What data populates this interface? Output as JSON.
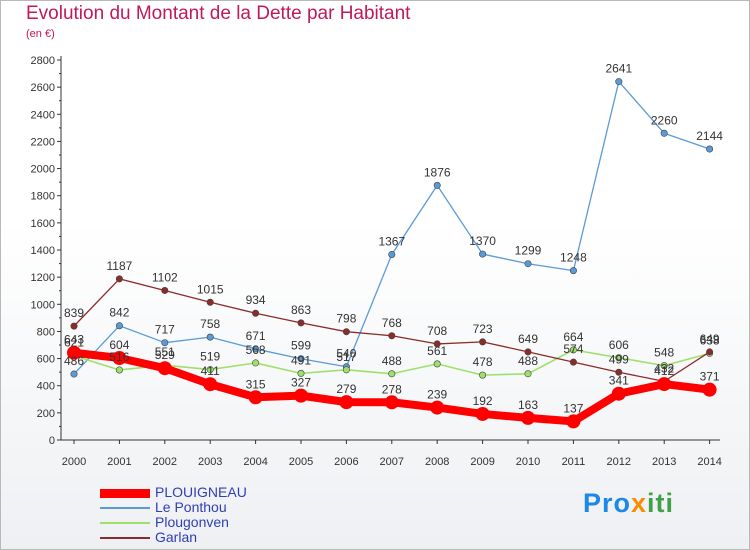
{
  "header": {
    "title": "Evolution du Montant de la Dette par Habitant",
    "subtitle": "(en €)"
  },
  "logo": {
    "part1": "Pro",
    "part2": "x",
    "part3": "iti"
  },
  "chart_data": {
    "type": "line",
    "x": [
      "2000",
      "2001",
      "2002",
      "2003",
      "2004",
      "2005",
      "2006",
      "2007",
      "2008",
      "2009",
      "2010",
      "2011",
      "2012",
      "2013",
      "2014"
    ],
    "ylim": [
      0,
      2800
    ],
    "yticks": [
      0,
      200,
      400,
      600,
      800,
      1000,
      1200,
      1400,
      1600,
      1800,
      2000,
      2200,
      2400,
      2600,
      2800
    ],
    "grid": false,
    "legend": "bottom-left",
    "series": [
      {
        "name": "PLOUIGNEAU",
        "color": "#ff0000",
        "width": 8,
        "marker": 7,
        "labels": true,
        "values": [
          643,
          604,
          529,
          411,
          315,
          327,
          279,
          278,
          239,
          192,
          163,
          137,
          341,
          412,
          371
        ]
      },
      {
        "name": "Le Ponthou",
        "color": "#5b9bd5",
        "width": 1.3,
        "marker": 3.2,
        "labels": true,
        "values": [
          486,
          842,
          717,
          758,
          671,
          599,
          540,
          1367,
          1876,
          1370,
          1299,
          1248,
          2641,
          2260,
          2144
        ]
      },
      {
        "name": "Plougonven",
        "color": "#9ee06a",
        "width": 1.6,
        "marker": 3.2,
        "labels": true,
        "values": [
          621,
          516,
          551,
          519,
          568,
          491,
          517,
          488,
          561,
          478,
          488,
          664,
          606,
          548,
          638
        ]
      },
      {
        "name": "Garlan",
        "color": "#8b2b2b",
        "width": 1.3,
        "marker": 3.2,
        "labels": true,
        "values": [
          839,
          1187,
          1102,
          1015,
          934,
          863,
          798,
          768,
          708,
          723,
          649,
          574,
          499,
          432,
          649
        ]
      }
    ]
  }
}
